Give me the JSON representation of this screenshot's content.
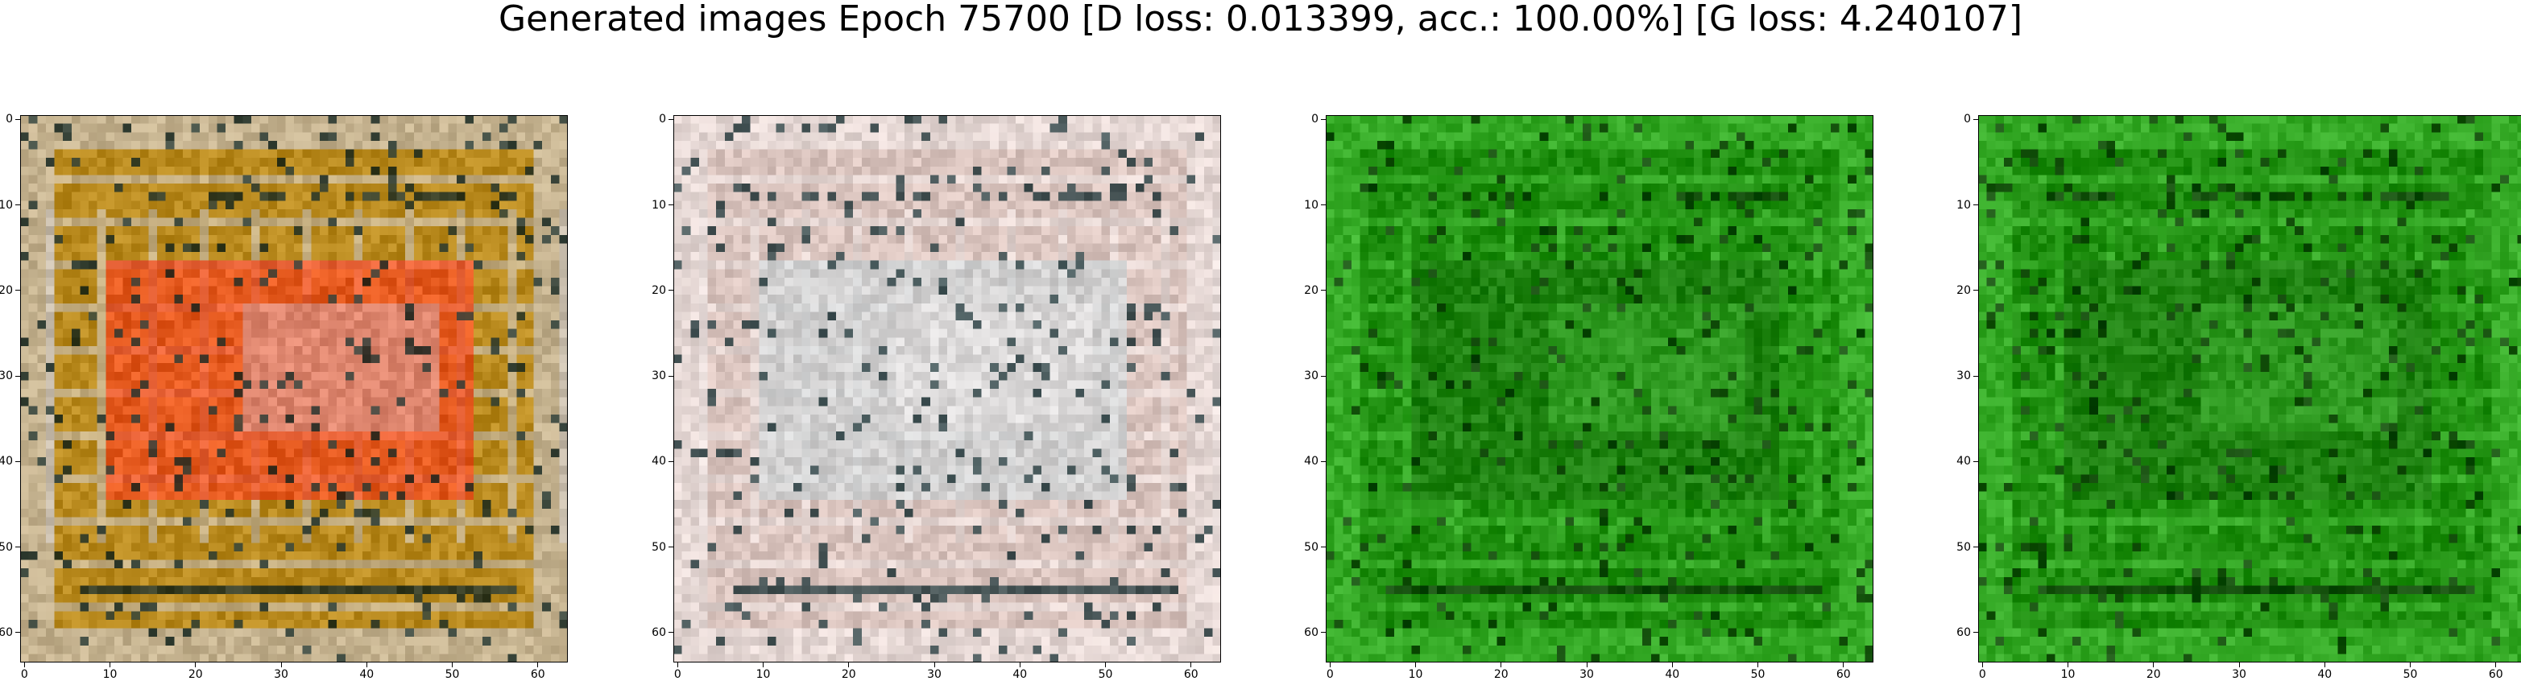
{
  "title": "Generated images Epoch 75700 [D loss: 0.013399, acc.: 100.00%] [G loss: 4.240107]",
  "axes": {
    "x_ticks": [
      "0",
      "10",
      "20",
      "30",
      "40",
      "50",
      "60"
    ],
    "y_ticks": [
      "0",
      "10",
      "20",
      "30",
      "40",
      "50",
      "60"
    ],
    "x_values": [
      0,
      10,
      20,
      30,
      40,
      50,
      60
    ],
    "y_values": [
      0,
      10,
      20,
      30,
      40,
      50,
      60
    ],
    "range": [
      0,
      64
    ]
  },
  "panels": [
    {
      "name": "generated-image-1",
      "palette": {
        "base": "#b98a1e",
        "frame": "#c9c3bf",
        "inner": "#f3491e",
        "dark": "#1a2d28"
      }
    },
    {
      "name": "generated-image-2",
      "palette": {
        "base": "#d9c3bd",
        "frame": "#eae0de",
        "inner": "#cdd3d5",
        "dark": "#243a3d"
      }
    },
    {
      "name": "generated-image-3",
      "palette": {
        "base": "#1f8f10",
        "frame": "#3fb630",
        "inner": "#1c7c0f",
        "dark": "#0e3d08"
      }
    },
    {
      "name": "generated-image-4",
      "palette": {
        "base": "#1f8f10",
        "frame": "#3fb630",
        "inner": "#1c7c0f",
        "dark": "#0e3d08"
      }
    }
  ]
}
